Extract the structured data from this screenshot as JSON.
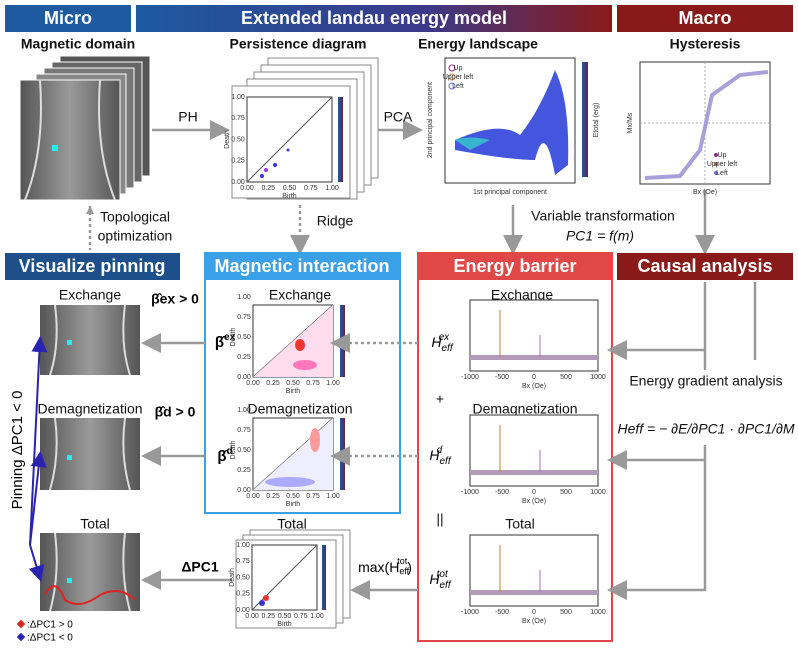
{
  "header": {
    "micro": "Micro",
    "model": "Extended landau energy model",
    "macro": "Macro"
  },
  "row1": {
    "domain": "Magnetic domain",
    "persistence": "Persistence diagram",
    "landscape": "Energy landscape",
    "hysteresis": "Hysteresis"
  },
  "steps": {
    "ph": "PH",
    "pca": "PCA",
    "topo1": "Topological",
    "topo2": "optimization",
    "ridge": "Ridge",
    "variable": "Variable transformation",
    "pc1": "PC1 = f(m)"
  },
  "sections": {
    "visualize": "Visualize pinning",
    "interaction": "Magnetic interaction",
    "barrier": "Energy barrier",
    "causal": "Causal analysis"
  },
  "pinning": {
    "exchange": "Exchange",
    "demag": "Demagnetization",
    "total": "Total",
    "axis": "Pinning ΔPC1 < 0",
    "legend_pos": ":ΔPC1 > 0",
    "legend_neg": ":ΔPC1 < 0",
    "beta_ex": "β̂ex > 0",
    "beta_d": "β̂d > 0",
    "delta": "ΔPC1"
  },
  "interaction": {
    "exchange": "Exchange",
    "demag": "Demagnetization",
    "total": "Total",
    "beta_ex": {
      "base": "β̂",
      "sup": "ex"
    },
    "beta_d": {
      "base": "β̂",
      "sup": "d"
    },
    "max": {
      "pre": "max(H",
      "sub": "eff",
      "sup": "tot",
      "post": ")"
    }
  },
  "barrier": {
    "exchange": "Exchange",
    "plus": "+",
    "demag": "Demagnetization",
    "equals": "||",
    "total": "Total",
    "h_ex": {
      "base": "H",
      "sub": "eff",
      "sup": "ex"
    },
    "h_d": {
      "base": "H",
      "sub": "eff",
      "sup": "d"
    },
    "h_tot": {
      "base": "H",
      "sub": "eff",
      "sup": "tot"
    },
    "xlabel": "Bx (Oe)",
    "xticks": [
      "-1000",
      "-500",
      "0",
      "500",
      "1000"
    ]
  },
  "causal": {
    "gradient": "Energy gradient analysis",
    "formula": "Heff = − ∂E/∂PC1 · ∂PC1/∂M"
  },
  "plots": {
    "death": "Death",
    "birth": "Birth",
    "pd_ticks": [
      "0.00",
      "0.25",
      "0.50",
      "0.75",
      "1.00"
    ],
    "pc1_label": "1st principal component",
    "pc2_label": "2nd principal component",
    "energy_label": "Etotal (erg)",
    "legend": [
      "Up",
      "Upper left",
      "Left"
    ],
    "mag_label": "Mx/Ms",
    "field_label": "Bx (Oe)"
  }
}
